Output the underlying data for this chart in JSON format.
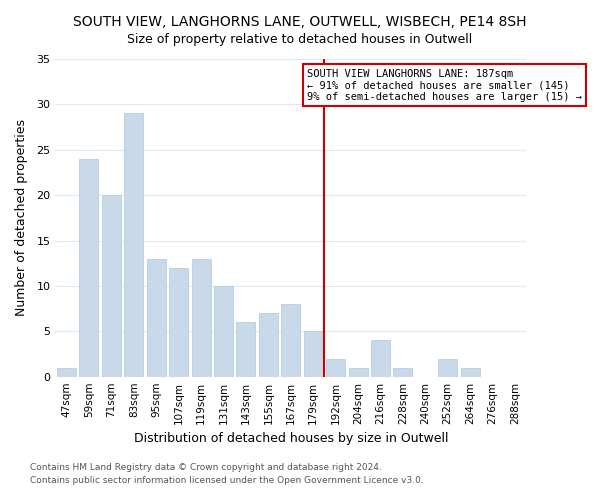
{
  "title": "SOUTH VIEW, LANGHORNS LANE, OUTWELL, WISBECH, PE14 8SH",
  "subtitle": "Size of property relative to detached houses in Outwell",
  "xlabel": "Distribution of detached houses by size in Outwell",
  "ylabel": "Number of detached properties",
  "bar_color": "#c8daea",
  "bar_edge_color": "#b0c8de",
  "categories": [
    "47sqm",
    "59sqm",
    "71sqm",
    "83sqm",
    "95sqm",
    "107sqm",
    "119sqm",
    "131sqm",
    "143sqm",
    "155sqm",
    "167sqm",
    "179sqm",
    "192sqm",
    "204sqm",
    "216sqm",
    "228sqm",
    "240sqm",
    "252sqm",
    "264sqm",
    "276sqm",
    "288sqm"
  ],
  "values": [
    1,
    24,
    20,
    29,
    13,
    12,
    13,
    10,
    6,
    7,
    8,
    5,
    2,
    1,
    4,
    1,
    0,
    2,
    1,
    0,
    0
  ],
  "ylim": [
    0,
    35
  ],
  "yticks": [
    0,
    5,
    10,
    15,
    20,
    25,
    30,
    35
  ],
  "vline_color": "#cc0000",
  "annotation_title": "SOUTH VIEW LANGHORNS LANE: 187sqm",
  "annotation_line1": "← 91% of detached houses are smaller (145)",
  "annotation_line2": "9% of semi-detached houses are larger (15) →",
  "footer1": "Contains HM Land Registry data © Crown copyright and database right 2024.",
  "footer2": "Contains public sector information licensed under the Open Government Licence v3.0.",
  "background_color": "#ffffff",
  "grid_color": "#e0e8f0",
  "title_fontsize": 10,
  "subtitle_fontsize": 9
}
